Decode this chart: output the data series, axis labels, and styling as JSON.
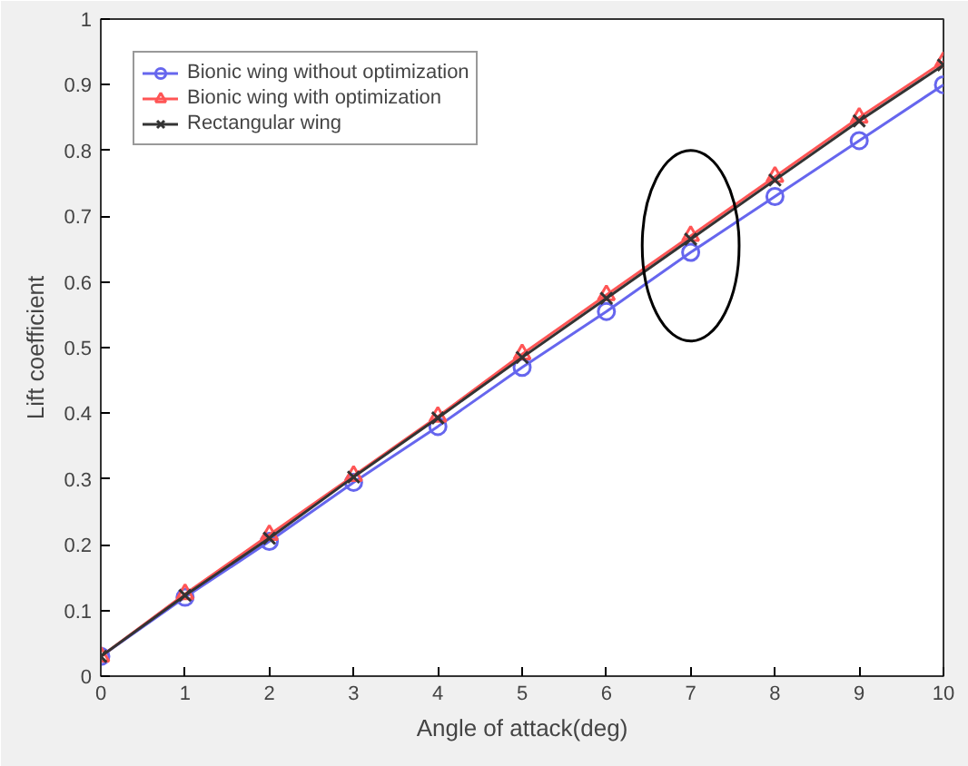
{
  "chart_data": {
    "type": "line",
    "xlabel": "Angle of attack(deg)",
    "ylabel": "Lift coefficient",
    "x": [
      0,
      1,
      2,
      3,
      4,
      5,
      6,
      7,
      8,
      9,
      10
    ],
    "series": [
      {
        "name": "Bionic wing without optimization",
        "color": "#6666ee",
        "marker": "circle",
        "values": [
          0.03,
          0.12,
          0.205,
          0.295,
          0.38,
          0.47,
          0.555,
          0.645,
          0.73,
          0.815,
          0.9
        ]
      },
      {
        "name": "Bionic wing with optimization",
        "color": "#ff5555",
        "marker": "triangle",
        "values": [
          0.03,
          0.125,
          0.215,
          0.305,
          0.395,
          0.49,
          0.58,
          0.67,
          0.76,
          0.85,
          0.935
        ]
      },
      {
        "name": "Rectangular wing",
        "color": "#333333",
        "marker": "cross",
        "values": [
          0.03,
          0.123,
          0.21,
          0.303,
          0.393,
          0.485,
          0.575,
          0.665,
          0.755,
          0.845,
          0.93
        ]
      }
    ],
    "xlim": [
      0,
      10
    ],
    "ylim": [
      0,
      1
    ],
    "xticks": [
      0,
      1,
      2,
      3,
      4,
      5,
      6,
      7,
      8,
      9,
      10
    ],
    "yticks": [
      0,
      0.1,
      0.2,
      0.3,
      0.4,
      0.5,
      0.6,
      0.7,
      0.8,
      0.9,
      1
    ],
    "grid": false,
    "legend": "top left",
    "line_style": "solid"
  }
}
